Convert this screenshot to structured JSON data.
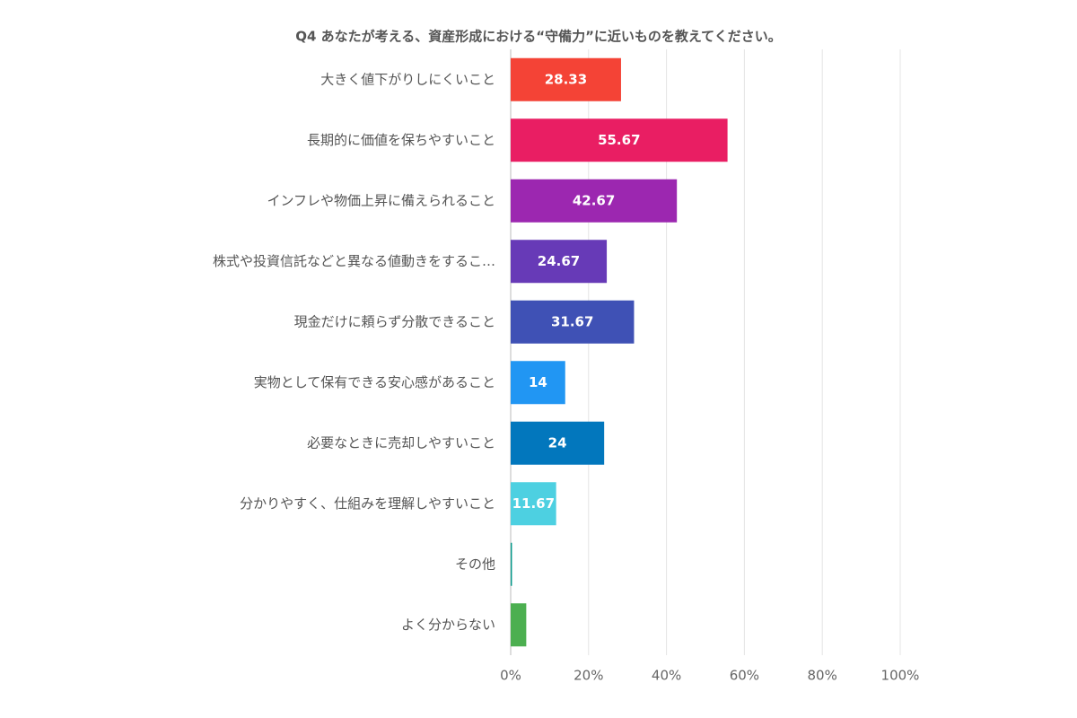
{
  "chart_data": {
    "type": "bar",
    "orientation": "horizontal",
    "title": "Q4 あなたが考える、資産形成における“守備力”に近いものを教えてください。",
    "categories": [
      "大きく値下がりしにくいこと",
      "長期的に価値を保ちやすいこと",
      "インフレや物価上昇に備えられること",
      "株式や投資信託などと異なる値動きをするこ…",
      "現金だけに頼らず分散できること",
      "実物として保有できる安心感があること",
      "必要なときに売却しやすいこと",
      "分かりやすく、仕組みを理解しやすいこと",
      "その他",
      "よく分からない"
    ],
    "values": [
      28.33,
      55.67,
      42.67,
      24.67,
      31.67,
      14,
      24,
      11.67,
      0.33,
      4
    ],
    "colors": [
      "#f44336",
      "#e91e63",
      "#9c27b0",
      "#673ab7",
      "#3f51b5",
      "#2196f3",
      "#0277bd",
      "#4dd0e1",
      "#009688",
      "#4caf50"
    ],
    "xlim": [
      0,
      100
    ],
    "xticks": [
      {
        "value": 0,
        "label": "0%"
      },
      {
        "value": 20,
        "label": "20%"
      },
      {
        "value": 40,
        "label": "40%"
      },
      {
        "value": 60,
        "label": "60%"
      },
      {
        "value": 80,
        "label": "80%"
      },
      {
        "value": 100,
        "label": "100%"
      }
    ],
    "grid": true
  }
}
